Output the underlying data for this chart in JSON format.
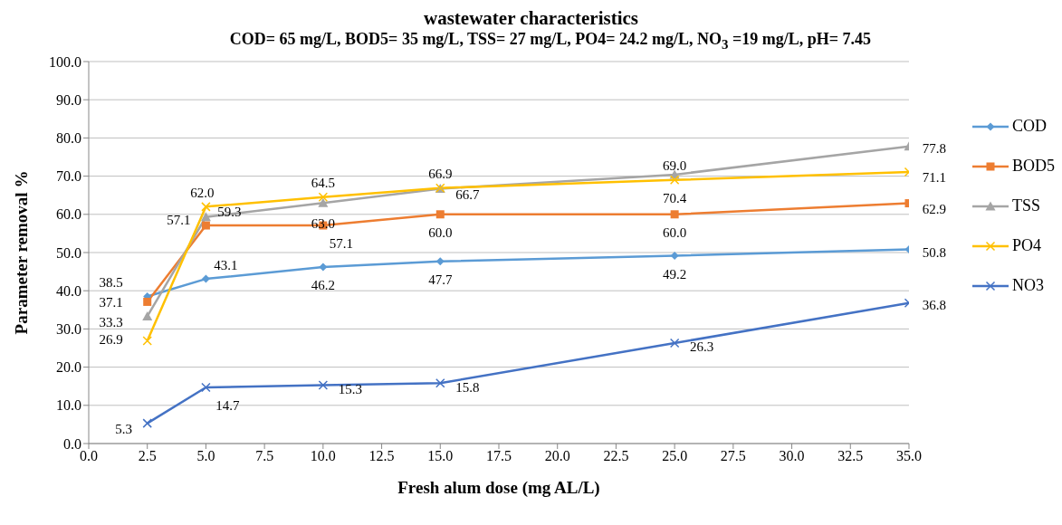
{
  "chart_data": {
    "type": "line",
    "title": "wastewater characteristics",
    "subtitle": "COD= 65 mg/L, BOD5= 35 mg/L, TSS= 27 mg/L,  PO4= 24.2 mg/L, NO$_{3}$ =19 mg/L, pH= 7.45",
    "xlabel": "Fresh alum dose (mg AL/L)",
    "ylabel": "Parameter removal %",
    "x": [
      2.5,
      5,
      10,
      15,
      25,
      35
    ],
    "series": [
      {
        "name": "COD",
        "color": "#5b9bd5",
        "marker": "diamond",
        "values": [
          38.5,
          43.1,
          46.2,
          47.7,
          49.2,
          50.8
        ],
        "value_labels": [
          "38.5",
          "43.1",
          "46.2",
          "47.7",
          "49.2",
          "50.8"
        ]
      },
      {
        "name": "BOD5",
        "color": "#ed7d31",
        "marker": "square",
        "values": [
          37.1,
          57.1,
          57.1,
          60,
          60,
          62.9
        ],
        "value_labels": [
          "37.1",
          "57.1",
          "57.1",
          "60.0",
          "60.0",
          "62.9"
        ]
      },
      {
        "name": "TSS",
        "color": "#a5a5a5",
        "marker": "triangle",
        "values": [
          33.3,
          59.3,
          63,
          66.7,
          70.4,
          77.8
        ],
        "value_labels": [
          "33.3",
          "59.3",
          "63.0",
          "66.7",
          "70.4",
          "77.8"
        ]
      },
      {
        "name": "PO4",
        "color": "#ffc000",
        "marker": "cross",
        "values": [
          26.9,
          62,
          64.5,
          66.9,
          69,
          71.1
        ],
        "value_labels": [
          "26.9",
          "62.0",
          "64.5",
          "66.9",
          "69.0",
          "71.1"
        ]
      },
      {
        "name": "NO3",
        "color": "#4472c4",
        "marker": "cross",
        "values": [
          5.3,
          14.7,
          15.3,
          15.8,
          26.3,
          36.8
        ],
        "value_labels": [
          "5.3",
          "14.7",
          "15.3",
          "15.8",
          "26.3",
          "36.8"
        ]
      }
    ],
    "xlim": [
      0,
      35
    ],
    "xticks": [
      {
        "value": 0,
        "label": "0.0"
      },
      {
        "value": 2.5,
        "label": "2.5"
      },
      {
        "value": 5,
        "label": "5.0"
      },
      {
        "value": 7.5,
        "label": "7.5"
      },
      {
        "value": 10,
        "label": "10.0"
      },
      {
        "value": 12.5,
        "label": "12.5"
      },
      {
        "value": 15,
        "label": "15.0"
      },
      {
        "value": 17.5,
        "label": "17.5"
      },
      {
        "value": 20,
        "label": "20.0"
      },
      {
        "value": 22.5,
        "label": "22.5"
      },
      {
        "value": 25,
        "label": "25.0"
      },
      {
        "value": 27.5,
        "label": "27.5"
      },
      {
        "value": 30,
        "label": "30.0"
      },
      {
        "value": 32.5,
        "label": "32.5"
      },
      {
        "value": 35,
        "label": "35.0"
      }
    ],
    "ylim": [
      0,
      100
    ],
    "yticks": [
      {
        "value": 0,
        "label": "0.0"
      },
      {
        "value": 10,
        "label": "10.0"
      },
      {
        "value": 20,
        "label": "20.0"
      },
      {
        "value": 30,
        "label": "30.0"
      },
      {
        "value": 40,
        "label": "40.0"
      },
      {
        "value": 50,
        "label": "50.0"
      },
      {
        "value": 60,
        "label": "60.0"
      },
      {
        "value": 70,
        "label": "70.0"
      },
      {
        "value": 80,
        "label": "80.0"
      },
      {
        "value": 90,
        "label": "90.0"
      },
      {
        "value": 100,
        "label": "100.0"
      }
    ],
    "grid": "y",
    "legend": "right"
  }
}
